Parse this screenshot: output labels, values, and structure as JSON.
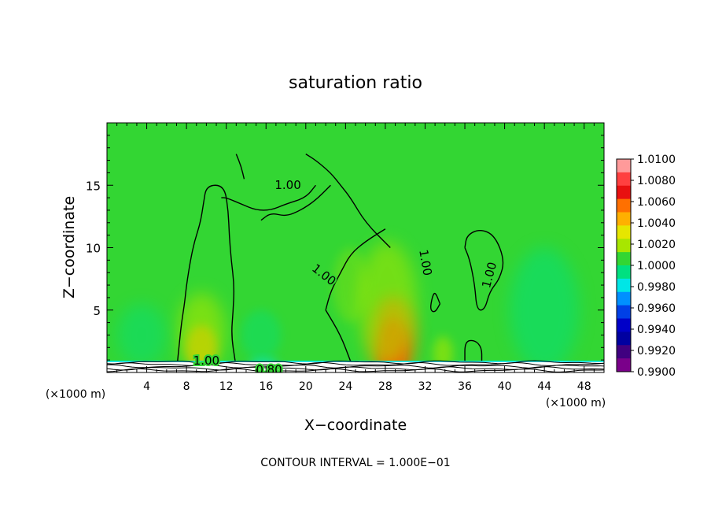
{
  "chart_data": {
    "type": "heatmap",
    "title": "saturation ratio",
    "xlabel": "X−coordinate",
    "ylabel": "Z−coordinate",
    "x_unit_left": "(×1000 m)",
    "x_unit_right": "(×1000 m)",
    "footer": "CONTOUR INTERVAL = 1.000E−01",
    "xlim": [
      0,
      50
    ],
    "ylim": [
      0,
      20
    ],
    "x_ticks": [
      "4",
      "8",
      "12",
      "16",
      "20",
      "24",
      "28",
      "32",
      "36",
      "40",
      "44",
      "48"
    ],
    "x_tick_values": [
      4,
      8,
      12,
      16,
      20,
      24,
      28,
      32,
      36,
      40,
      44,
      48
    ],
    "y_ticks": [
      "5",
      "10",
      "15"
    ],
    "y_tick_values": [
      5,
      10,
      15
    ],
    "colorbar": {
      "labels": [
        "1.0100",
        "1.0080",
        "1.0060",
        "1.0040",
        "1.0020",
        "1.0000",
        "0.9980",
        "0.9960",
        "0.9940",
        "0.9920",
        "0.9900"
      ],
      "colors": [
        "#ff9a9a",
        "#ff4040",
        "#e81010",
        "#ff7000",
        "#ffb000",
        "#e6e600",
        "#a8e600",
        "#33d633",
        "#00e080",
        "#00e6e6",
        "#0090ff",
        "#0040e6",
        "#0000c8",
        "#0000a0",
        "#400080",
        "#7a008a"
      ]
    },
    "contour_labels": [
      {
        "text": "1.00",
        "x": 18.2,
        "y": 15.0,
        "rotate": 0
      },
      {
        "text": "1.00",
        "x": 21.8,
        "y": 7.8,
        "rotate": 38
      },
      {
        "text": "1.00",
        "x": 32.0,
        "y": 8.8,
        "rotate": 80
      },
      {
        "text": "1.00",
        "x": 38.5,
        "y": 7.8,
        "rotate": -75
      },
      {
        "text": "1.00",
        "x": 10.0,
        "y": 0.9,
        "rotate": 0
      },
      {
        "text": "0.80",
        "x": 16.3,
        "y": 0.2,
        "rotate": 0
      }
    ],
    "anomalies": [
      {
        "x": 28.8,
        "y": 2.0,
        "rx": 1.3,
        "ry": 2.3,
        "color": "#e81010",
        "opacity": 0.9
      },
      {
        "x": 28.8,
        "y": 2.6,
        "rx": 2.2,
        "ry": 3.5,
        "color": "#ff7000",
        "opacity": 0.75
      },
      {
        "x": 28.2,
        "y": 5.5,
        "rx": 3.0,
        "ry": 5.0,
        "color": "#a8e600",
        "opacity": 0.55
      },
      {
        "x": 9.5,
        "y": 2.0,
        "rx": 1.5,
        "ry": 1.8,
        "color": "#ffb000",
        "opacity": 0.75
      },
      {
        "x": 9.5,
        "y": 3.2,
        "rx": 2.4,
        "ry": 3.2,
        "color": "#a8e600",
        "opacity": 0.6
      },
      {
        "x": 33.8,
        "y": 1.5,
        "rx": 1.0,
        "ry": 1.4,
        "color": "#a8e600",
        "opacity": 0.6
      },
      {
        "x": 44.0,
        "y": 5.0,
        "rx": 3.5,
        "ry": 5.0,
        "color": "#00e080",
        "opacity": 0.5
      },
      {
        "x": 3.5,
        "y": 3.0,
        "rx": 2.5,
        "ry": 2.5,
        "color": "#00e080",
        "opacity": 0.45
      },
      {
        "x": 15.5,
        "y": 3.0,
        "rx": 2.0,
        "ry": 2.0,
        "color": "#00e080",
        "opacity": 0.4
      },
      {
        "x": 15.8,
        "y": 0.6,
        "rx": 1.5,
        "ry": 0.5,
        "color": "#00e6e6",
        "opacity": 0.6
      },
      {
        "x": 24.5,
        "y": 7.0,
        "rx": 1.8,
        "ry": 3.0,
        "color": "#a8e600",
        "opacity": 0.3
      }
    ],
    "contours": [
      [
        [
          12.9,
          0.9
        ],
        [
          12.5,
          3.0
        ],
        [
          12.7,
          5.0
        ],
        [
          12.8,
          7.0
        ],
        [
          12.5,
          9.0
        ],
        [
          12.3,
          11.0
        ],
        [
          12.2,
          13.0
        ],
        [
          11.8,
          15.0
        ],
        [
          10.0,
          15.0
        ],
        [
          9.7,
          13.5
        ],
        [
          9.4,
          12.0
        ],
        [
          8.8,
          10.5
        ],
        [
          8.4,
          9.0
        ],
        [
          8.0,
          7.0
        ],
        [
          7.8,
          5.5
        ],
        [
          7.5,
          4.0
        ],
        [
          7.3,
          2.5
        ],
        [
          7.1,
          0.9
        ]
      ],
      [
        [
          28.5,
          10.0
        ],
        [
          26.0,
          12.0
        ],
        [
          24.5,
          14.0
        ],
        [
          23.5,
          15.0
        ],
        [
          22.5,
          16.0
        ],
        [
          21.0,
          17.0
        ],
        [
          20.0,
          17.5
        ]
      ],
      [
        [
          21.0,
          15.0
        ],
        [
          20.0,
          14.0
        ],
        [
          18.0,
          13.5
        ],
        [
          16.5,
          13.0
        ],
        [
          15.0,
          13.0
        ],
        [
          13.5,
          13.5
        ],
        [
          12.0,
          14.0
        ],
        [
          11.5,
          14.0
        ]
      ],
      [
        [
          13.8,
          15.5
        ],
        [
          13.5,
          16.5
        ],
        [
          13.0,
          17.5
        ]
      ],
      [
        [
          22.5,
          15.0
        ],
        [
          21.0,
          13.8
        ],
        [
          19.5,
          13.0
        ],
        [
          18.0,
          12.5
        ],
        [
          16.5,
          12.8
        ],
        [
          15.5,
          12.2
        ]
      ],
      [
        [
          28.0,
          11.5
        ],
        [
          26.0,
          10.5
        ],
        [
          24.5,
          9.5
        ],
        [
          23.5,
          8.0
        ],
        [
          22.5,
          6.5
        ],
        [
          22.0,
          5.0
        ]
      ],
      [
        [
          22.0,
          5.0
        ],
        [
          23.5,
          3.0
        ],
        [
          24.5,
          0.9
        ]
      ],
      [
        [
          36.0,
          10.0
        ],
        [
          36.5,
          9.0
        ],
        [
          37.0,
          7.0
        ],
        [
          37.2,
          5.0
        ],
        [
          38.0,
          5.0
        ],
        [
          38.5,
          6.5
        ],
        [
          39.5,
          7.5
        ],
        [
          40.0,
          9.0
        ],
        [
          39.0,
          11.0
        ],
        [
          37.5,
          11.5
        ],
        [
          36.2,
          11.0
        ],
        [
          36.0,
          10.0
        ]
      ],
      [
        [
          33.5,
          5.5
        ],
        [
          33.0,
          6.5
        ],
        [
          32.7,
          6.0
        ],
        [
          32.5,
          5.0
        ],
        [
          33.0,
          4.8
        ],
        [
          33.5,
          5.5
        ]
      ],
      [
        [
          36.0,
          0.9
        ],
        [
          36.0,
          2.5
        ],
        [
          37.0,
          2.6
        ],
        [
          37.7,
          2.0
        ],
        [
          37.7,
          0.9
        ]
      ]
    ]
  }
}
